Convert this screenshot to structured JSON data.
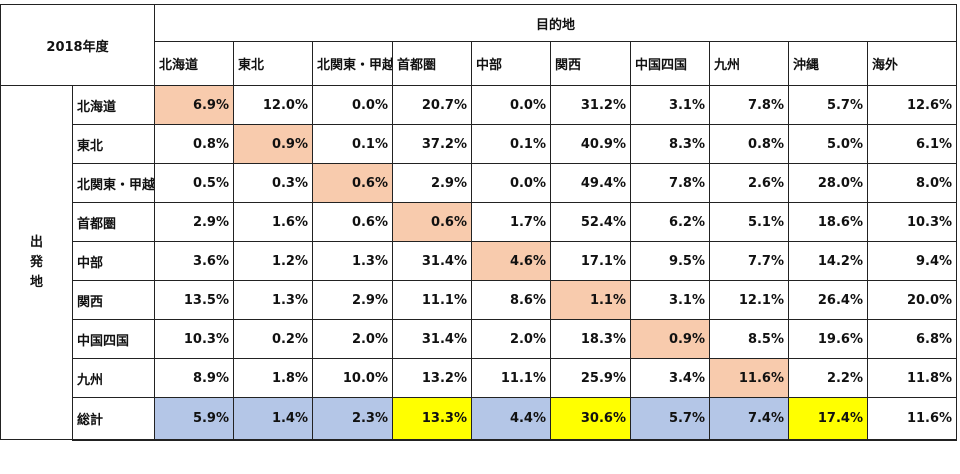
{
  "title": "2018年度",
  "destination_header": "目的地",
  "origin_header": "出\n発\n地",
  "chart_data": {
    "type": "table",
    "title": "2018年度",
    "column_group_label": "目的地",
    "row_group_label": "出発地",
    "columns": [
      "北海道",
      "東北",
      "北関東・甲越",
      "首都圏",
      "中部",
      "関西",
      "中国四国",
      "九州",
      "沖縄",
      "海外"
    ],
    "rows": [
      {
        "label": "北海道",
        "values": [
          "6.9%",
          "12.0%",
          "0.0%",
          "20.7%",
          "0.0%",
          "31.2%",
          "3.1%",
          "7.8%",
          "5.7%",
          "12.6%"
        ]
      },
      {
        "label": "東北",
        "values": [
          "0.8%",
          "0.9%",
          "0.1%",
          "37.2%",
          "0.1%",
          "40.9%",
          "8.3%",
          "0.8%",
          "5.0%",
          "6.1%"
        ]
      },
      {
        "label": "北関東・甲越",
        "values": [
          "0.5%",
          "0.3%",
          "0.6%",
          "2.9%",
          "0.0%",
          "49.4%",
          "7.8%",
          "2.6%",
          "28.0%",
          "8.0%"
        ]
      },
      {
        "label": "首都圏",
        "values": [
          "2.9%",
          "1.6%",
          "0.6%",
          "0.6%",
          "1.7%",
          "52.4%",
          "6.2%",
          "5.1%",
          "18.6%",
          "10.3%"
        ]
      },
      {
        "label": "中部",
        "values": [
          "3.6%",
          "1.2%",
          "1.3%",
          "31.4%",
          "4.6%",
          "17.1%",
          "9.5%",
          "7.7%",
          "14.2%",
          "9.4%"
        ]
      },
      {
        "label": "関西",
        "values": [
          "13.5%",
          "1.3%",
          "2.9%",
          "11.1%",
          "8.6%",
          "1.1%",
          "3.1%",
          "12.1%",
          "26.4%",
          "20.0%"
        ]
      },
      {
        "label": "中国四国",
        "values": [
          "10.3%",
          "0.2%",
          "2.0%",
          "31.4%",
          "2.0%",
          "18.3%",
          "0.9%",
          "8.5%",
          "19.6%",
          "6.8%"
        ]
      },
      {
        "label": "九州",
        "values": [
          "8.9%",
          "1.8%",
          "10.0%",
          "13.2%",
          "11.1%",
          "25.9%",
          "3.4%",
          "11.6%",
          "2.2%",
          "11.8%"
        ]
      }
    ],
    "total": {
      "label": "総計",
      "values": [
        "5.9%",
        "1.4%",
        "2.3%",
        "13.3%",
        "4.4%",
        "30.6%",
        "5.7%",
        "7.4%",
        "17.4%",
        "11.6%"
      ],
      "highlight": [
        "blue",
        "blue",
        "blue",
        "yellow",
        "blue",
        "yellow",
        "blue",
        "blue",
        "yellow",
        "none"
      ]
    },
    "colors": {
      "diagonal": "#f8cbad",
      "blue": "#b4c6e7",
      "yellow": "#ffff00",
      "border": "#222222"
    }
  }
}
